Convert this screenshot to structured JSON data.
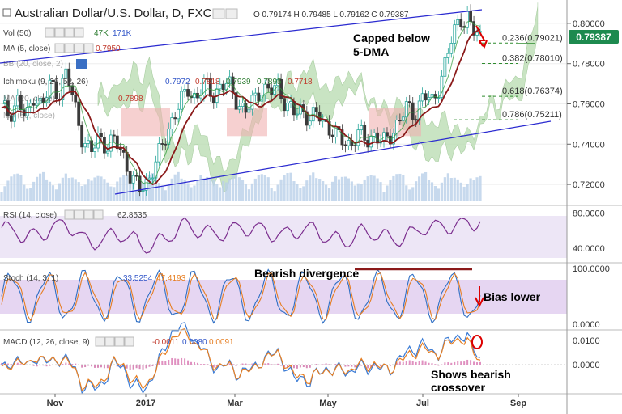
{
  "header": {
    "title": "Australian Dollar/U.S. Dollar, D, FXCM",
    "ohlc": "O 0.79174 H 0.79485 L 0.79162 C 0.79387"
  },
  "price_badge": "0.79387",
  "indicators": {
    "vol": {
      "label": "Vol (50)",
      "v1": "47K",
      "v2": "171K"
    },
    "ma": {
      "label": "MA (5, close)",
      "value": "0.7950"
    },
    "bb": {
      "label": "BB (20, close, 2)"
    },
    "ichimoku": {
      "label": "Ichimoku (9, 26, 52, 26)",
      "v1": "0.7972",
      "v2": "0.7818",
      "v3": "0.7939",
      "v4": "0.7895",
      "v5": "0.7718"
    },
    "ma20": {
      "label": "MA (20, close)",
      "value": "0.7898"
    },
    "ma50": {
      "label": "MA (50, close)"
    },
    "rsi": {
      "label": "RSI (14, close)",
      "value": "62.8535"
    },
    "stoch": {
      "label": "Stoch (14, 3, 1)",
      "v1": "33.5254",
      "v2": "47.4193"
    },
    "macd": {
      "label": "MACD (12, 26, close, 9)",
      "v1": "-0.0011",
      "v2": "0.0080",
      "v3": "0.0091"
    }
  },
  "annotations": {
    "capped": "Capped below\n5-DMA",
    "bearish_div": "Bearish divergence",
    "bias_lower": "Bias lower",
    "shows_crossover": "Shows bearish\ncrossover"
  },
  "fib_levels": [
    {
      "label": "0.236(0.79021)",
      "value": 0.79021
    },
    {
      "label": "0.382(0.78010)",
      "value": 0.7801
    },
    {
      "label": "0.618(0.76374)",
      "value": 0.76374
    },
    {
      "label": "0.786(0.75211)",
      "value": 0.75211
    }
  ],
  "colors": {
    "up": "#26a69a",
    "down": "#3a3a3a",
    "ma5": "#8b1a1a",
    "ichimoku_cloud_green": "#b8dcb0",
    "ichimoku_cloud_red": "#f0b0b0",
    "channel": "#2a2ad0",
    "rsi": "#7b2d8e",
    "stoch_k": "#2f6fc4",
    "stoch_d": "#e67e22",
    "macd": "#3a7bd5",
    "signal": "#e67e22",
    "hist_pos": "#e090c0",
    "badge": "#1d8a4f"
  },
  "chart_data": {
    "type": "candlestick",
    "title": "Australian Dollar/U.S. Dollar, D, FXCM",
    "x_tick_labels": [
      "Nov",
      "2017",
      "Mar",
      "May",
      "Jul",
      "Sep"
    ],
    "price_axis_labels": [
      "0.80000",
      "0.78000",
      "0.76000",
      "0.74000",
      "0.72000"
    ],
    "price_range": [
      0.712,
      0.81
    ],
    "price_path": [
      [
        0,
        0.758
      ],
      [
        10,
        0.755
      ],
      [
        20,
        0.762
      ],
      [
        30,
        0.752
      ],
      [
        40,
        0.765
      ],
      [
        50,
        0.758
      ],
      [
        60,
        0.77
      ],
      [
        70,
        0.765
      ],
      [
        80,
        0.775
      ],
      [
        90,
        0.76
      ],
      [
        100,
        0.742
      ],
      [
        110,
        0.735
      ],
      [
        120,
        0.745
      ],
      [
        130,
        0.738
      ],
      [
        140,
        0.742
      ],
      [
        150,
        0.735
      ],
      [
        160,
        0.722
      ],
      [
        170,
        0.718
      ],
      [
        180,
        0.722
      ],
      [
        190,
        0.73
      ],
      [
        200,
        0.742
      ],
      [
        210,
        0.752
      ],
      [
        220,
        0.76
      ],
      [
        230,
        0.768
      ],
      [
        240,
        0.762
      ],
      [
        250,
        0.77
      ],
      [
        260,
        0.765
      ],
      [
        270,
        0.768
      ],
      [
        280,
        0.77
      ],
      [
        290,
        0.762
      ],
      [
        300,
        0.755
      ],
      [
        310,
        0.762
      ],
      [
        320,
        0.768
      ],
      [
        330,
        0.765
      ],
      [
        340,
        0.77
      ],
      [
        350,
        0.76
      ],
      [
        360,
        0.755
      ],
      [
        370,
        0.758
      ],
      [
        380,
        0.752
      ],
      [
        390,
        0.755
      ],
      [
        400,
        0.75
      ],
      [
        410,
        0.745
      ],
      [
        420,
        0.742
      ],
      [
        430,
        0.74
      ],
      [
        440,
        0.745
      ],
      [
        450,
        0.742
      ],
      [
        460,
        0.745
      ],
      [
        470,
        0.74
      ],
      [
        480,
        0.745
      ],
      [
        490,
        0.752
      ],
      [
        500,
        0.758
      ],
      [
        510,
        0.755
      ],
      [
        520,
        0.765
      ],
      [
        530,
        0.76
      ],
      [
        540,
        0.77
      ],
      [
        550,
        0.785
      ],
      [
        560,
        0.798
      ],
      [
        565,
        0.805
      ],
      [
        570,
        0.8
      ],
      [
        575,
        0.803
      ],
      [
        580,
        0.797
      ],
      [
        585,
        0.794
      ],
      [
        590,
        0.7939
      ]
    ],
    "rsi_axis_labels": [
      "80.0000",
      "40.0000"
    ],
    "rsi_range": [
      25,
      85
    ],
    "stoch_axis_labels": [
      "100.0000",
      "0.0000"
    ],
    "macd_axis_labels": [
      "0.0100",
      "0.0000"
    ]
  }
}
